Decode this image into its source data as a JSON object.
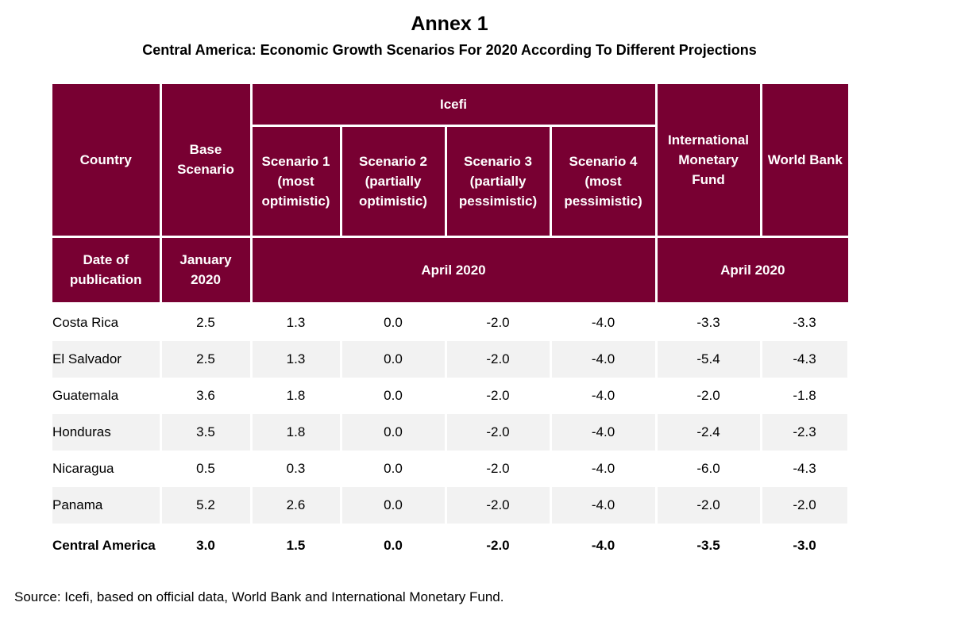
{
  "title": "Annex 1",
  "subtitle": "Central America: Economic Growth Scenarios For 2020 According To Different Projections",
  "header": {
    "country": "Country",
    "base_scenario": "Base Scenario",
    "icefi": "Icefi",
    "scenario1": "Scenario 1 (most optimistic)",
    "scenario2": "Scenario 2 (partially optimistic)",
    "scenario3": "Scenario 3 (partially pessimistic)",
    "scenario4": "Scenario 4 (most pessimistic)",
    "imf": "International Monetary Fund",
    "world_bank": "World Bank",
    "date_label": "Date of publication",
    "date_base": "January 2020",
    "date_icefi": "April 2020",
    "date_intl": "April 2020"
  },
  "rows": [
    {
      "country": "Costa Rica",
      "base": "2.5",
      "s1": "1.3",
      "s2": "0.0",
      "s3": "-2.0",
      "s4": "-4.0",
      "imf": "-3.3",
      "wb": "-3.3"
    },
    {
      "country": "El Salvador",
      "base": "2.5",
      "s1": "1.3",
      "s2": "0.0",
      "s3": "-2.0",
      "s4": "-4.0",
      "imf": "-5.4",
      "wb": "-4.3"
    },
    {
      "country": "Guatemala",
      "base": "3.6",
      "s1": "1.8",
      "s2": "0.0",
      "s3": "-2.0",
      "s4": "-4.0",
      "imf": "-2.0",
      "wb": "-1.8"
    },
    {
      "country": "Honduras",
      "base": "3.5",
      "s1": "1.8",
      "s2": "0.0",
      "s3": "-2.0",
      "s4": "-4.0",
      "imf": "-2.4",
      "wb": "-2.3"
    },
    {
      "country": "Nicaragua",
      "base": "0.5",
      "s1": "0.3",
      "s2": "0.0",
      "s3": "-2.0",
      "s4": "-4.0",
      "imf": "-6.0",
      "wb": "-4.3"
    },
    {
      "country": "Panama",
      "base": "5.2",
      "s1": "2.6",
      "s2": "0.0",
      "s3": "-2.0",
      "s4": "-4.0",
      "imf": "-2.0",
      "wb": "-2.0"
    }
  ],
  "total": {
    "country": "Central America",
    "base": "3.0",
    "s1": "1.5",
    "s2": "0.0",
    "s3": "-2.0",
    "s4": "-4.0",
    "imf": "-3.5",
    "wb": "-3.0"
  },
  "source": "Source: Icefi, based on official data, World Bank and International Monetary Fund.",
  "colors": {
    "header_bg": "#780032",
    "row_shade": "#f2f2f2"
  }
}
